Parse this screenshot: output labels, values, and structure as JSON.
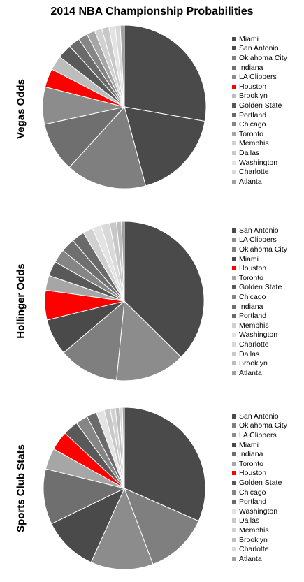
{
  "title": "2014 NBA Championship Probabilities",
  "colors": {
    "Miami": "#4a4a4a",
    "San Antonio": "#4a4a4a",
    "Oklahoma City": "#7f7f7f",
    "Indiana": "#6f6f6f",
    "LA Clippers": "#8c8c8c",
    "Houston": "#ff0000",
    "Brooklyn": "#bdbdbd",
    "Golden State": "#595959",
    "Portland": "#6a6a6a",
    "Chicago": "#858585",
    "Toronto": "#a6a6a6",
    "Memphis": "#d0d0d0",
    "Dallas": "#c8c8c8",
    "Washington": "#e3e3e3",
    "Charlotte": "#d9d9d9",
    "Atlanta": "#a0a0a0"
  },
  "chart_data": [
    {
      "type": "pie",
      "title": "Vegas Odds",
      "categories": [
        "Miami",
        "San Antonio",
        "Oklahoma City",
        "Indiana",
        "LA Clippers",
        "Houston",
        "Brooklyn",
        "Golden State",
        "Portland",
        "Chicago",
        "Toronto",
        "Memphis",
        "Dallas",
        "Washington",
        "Charlotte",
        "Atlanta"
      ],
      "values": [
        27.2,
        17.6,
        15.6,
        9.6,
        7.2,
        3.6,
        2.8,
        2.8,
        2.2,
        1.8,
        1.6,
        1.4,
        1.4,
        1.2,
        1.0,
        0.8
      ],
      "legend_position": "right"
    },
    {
      "type": "pie",
      "title": "Hollinger Odds",
      "categories": [
        "San Antonio",
        "LA Clippers",
        "Oklahoma City",
        "Miami",
        "Houston",
        "Toronto",
        "Golden State",
        "Chicago",
        "Indiana",
        "Portland",
        "Memphis",
        "Washington",
        "Charlotte",
        "Dallas",
        "Brooklyn",
        "Atlanta"
      ],
      "values": [
        37.4,
        14.2,
        12.2,
        7.4,
        6.0,
        3.0,
        3.0,
        2.8,
        2.8,
        2.6,
        2.0,
        1.8,
        1.8,
        1.4,
        1.0,
        0.6
      ],
      "legend_position": "right"
    },
    {
      "type": "pie",
      "title": "Sports Club Stats",
      "categories": [
        "San Antonio",
        "Oklahoma City",
        "LA Clippers",
        "Miami",
        "Indiana",
        "Toronto",
        "Houston",
        "Golden State",
        "Chicago",
        "Portland",
        "Washington",
        "Dallas",
        "Memphis",
        "Brooklyn",
        "Charlotte",
        "Atlanta"
      ],
      "values": [
        31.4,
        12.6,
        12.4,
        11.0,
        11.0,
        4.2,
        3.8,
        3.0,
        2.4,
        2.0,
        1.6,
        1.2,
        1.0,
        0.8,
        0.6,
        0.4
      ],
      "legend_position": "right"
    }
  ]
}
